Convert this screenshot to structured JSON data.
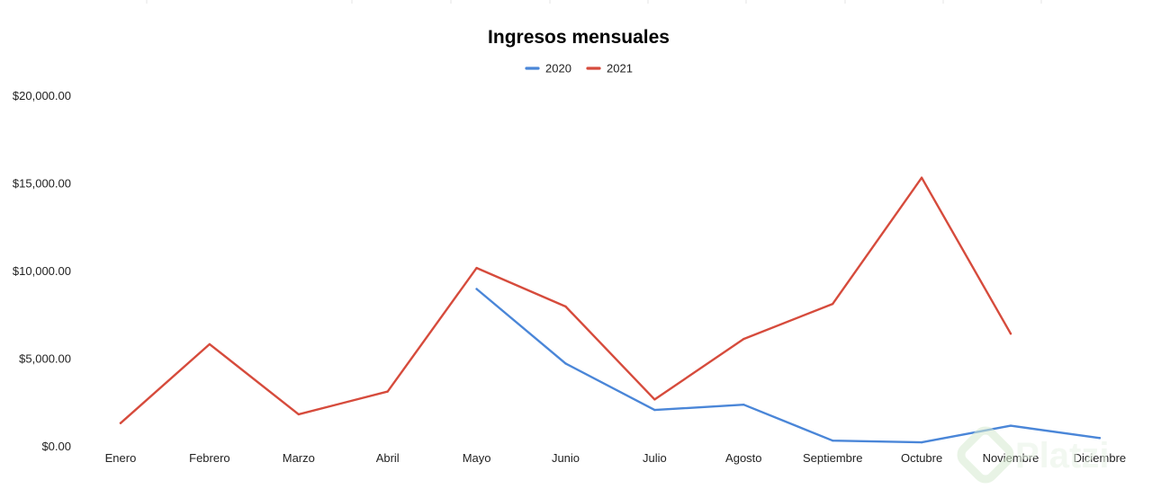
{
  "chart_data": {
    "type": "line",
    "title": "Ingresos mensuales",
    "xlabel": "",
    "ylabel": "",
    "categories": [
      "Enero",
      "Febrero",
      "Marzo",
      "Abril",
      "Mayo",
      "Junio",
      "Julio",
      "Agosto",
      "Septiembre",
      "Octubre",
      "Noviembre",
      "Diciembre"
    ],
    "y_ticks": [
      "$0.00",
      "$5,000.00",
      "$10,000.00",
      "$15,000.00",
      "$20,000.00"
    ],
    "ylim": [
      0,
      20000
    ],
    "y_tick_values": [
      0,
      5000,
      10000,
      15000,
      20000
    ],
    "grid": false,
    "legend_position": "top-center",
    "series": [
      {
        "name": "2020",
        "color": "#4a86d8",
        "values": [
          null,
          null,
          null,
          null,
          9000,
          4750,
          2100,
          2400,
          350,
          250,
          1200,
          500
        ]
      },
      {
        "name": "2021",
        "color": "#d64b3c",
        "values": [
          1350,
          5850,
          1850,
          3150,
          10200,
          8000,
          2700,
          6150,
          8150,
          15350,
          6450,
          null
        ]
      }
    ]
  },
  "watermark": {
    "text": "Platzi",
    "color": "#98ca3f",
    "icon": "platzi-logo-icon"
  }
}
